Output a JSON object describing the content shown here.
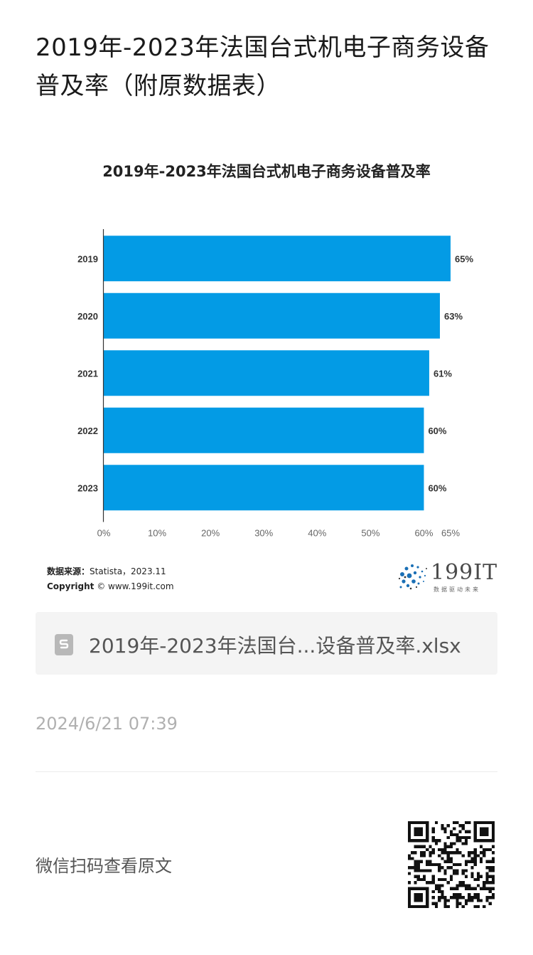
{
  "article": {
    "title": "2019年-2023年法国台式机电子商务设备普及率（附原数据表）"
  },
  "chart_data": {
    "type": "bar",
    "orientation": "horizontal",
    "title": "2019年-2023年法国台式机电子商务设备普及率",
    "categories": [
      "2019",
      "2020",
      "2021",
      "2022",
      "2023"
    ],
    "values": [
      65,
      63,
      61,
      60,
      60
    ],
    "data_labels": [
      "65%",
      "63%",
      "61%",
      "60%",
      "60%"
    ],
    "x_ticks": [
      0,
      10,
      20,
      30,
      40,
      50,
      60,
      65
    ],
    "x_tick_labels": [
      "0%",
      "10%",
      "20%",
      "30%",
      "40%",
      "50%",
      "60%",
      "65%"
    ],
    "xlim": [
      0,
      65
    ],
    "xlabel": "",
    "ylabel": "",
    "grid": false,
    "bar_color": "#039be5"
  },
  "source": {
    "label": "数据来源：",
    "value": "Statista，2023.11",
    "copyright_label": "Copyright",
    "copyright_value": "© www.199it.com"
  },
  "brand": {
    "name": "199IT",
    "slogan": "数据驱动未来"
  },
  "attachment": {
    "icon": "spreadsheet-file-icon",
    "filename": "2019年-2023年法国台...设备普及率.xlsx"
  },
  "meta": {
    "timestamp": "2024/6/21 07:39"
  },
  "footer": {
    "qr_hint": "微信扫码查看原文",
    "qr_icon": "qr-code-icon"
  }
}
